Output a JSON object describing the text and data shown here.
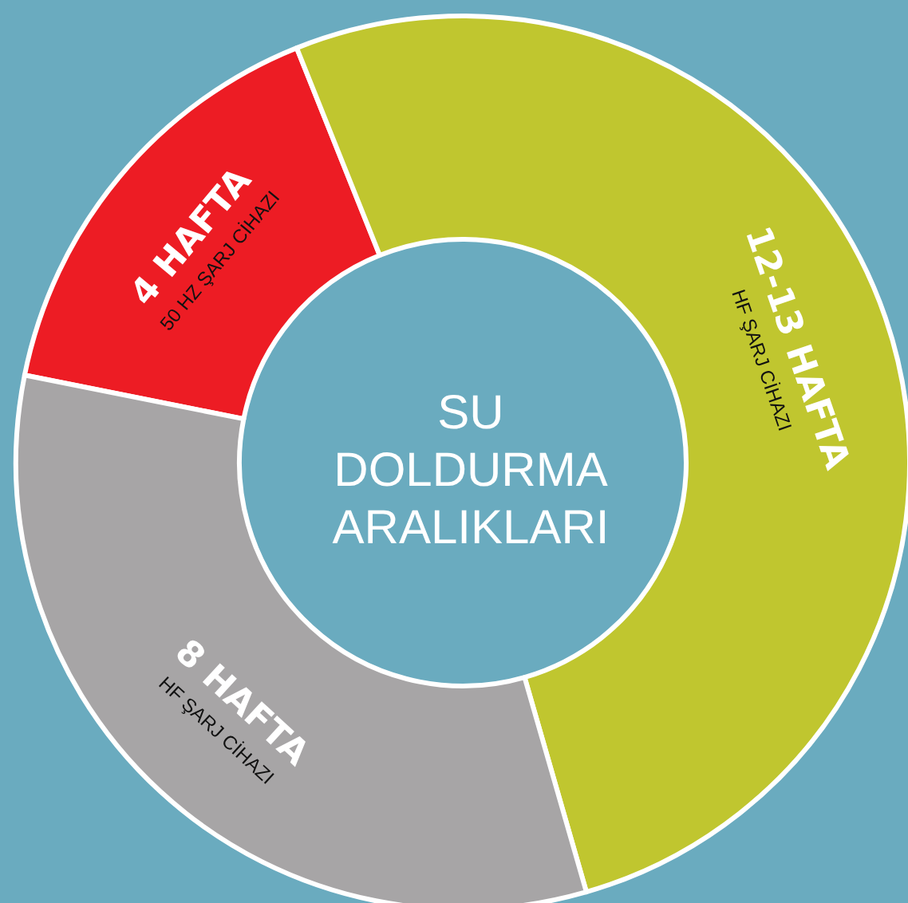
{
  "chart_data": {
    "type": "donut",
    "title": "SU\nDOLDURMA\nARALIKLARI",
    "categories": [
      "4 HAFTA",
      "12-13 HAFTA",
      "8 HAFTA"
    ],
    "values": [
      15.8,
      51.6,
      32.6
    ],
    "colors": [
      "#ed1c24",
      "#c0c62f",
      "#a7a5a6"
    ],
    "annotations": [
      "50 HZ ŞARJ CİHAZI",
      "HF ŞARJ CİHAZI",
      "HF ŞARJ CİHAZI"
    ],
    "legend": false
  }
}
